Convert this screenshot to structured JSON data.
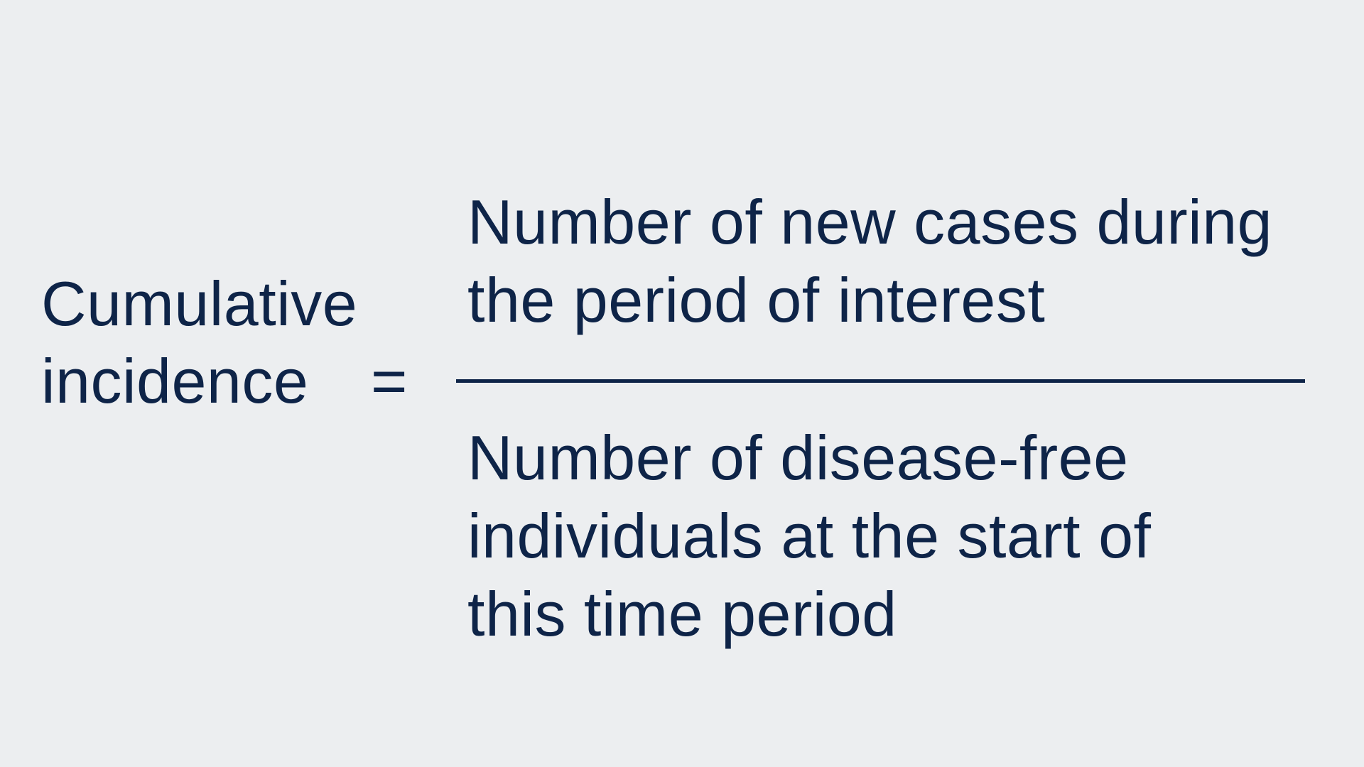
{
  "colors": {
    "background": "#eceef0",
    "text": "#0e2448",
    "fraction_bar": "#0e2448"
  },
  "formula": {
    "lhs": {
      "lines": [
        "Cumulative",
        "incidence"
      ]
    },
    "operator": "=",
    "numerator": {
      "lines": [
        "Number of new cases during",
        "the period of interest"
      ]
    },
    "denominator": {
      "lines": [
        "Number of disease-free",
        "individuals at the start of",
        "this time period"
      ]
    }
  }
}
